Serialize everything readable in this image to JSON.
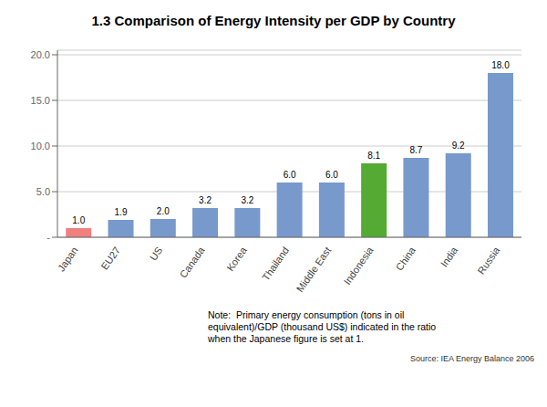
{
  "chart_data": {
    "type": "bar",
    "title": "1.3 Comparison of Energy Intensity per GDP by Country",
    "categories": [
      "Japan",
      "EU27",
      "US",
      "Canada",
      "Korea",
      "Thailand",
      "Middle East",
      "Indonesia",
      "China",
      "India",
      "Russia"
    ],
    "values": [
      1.0,
      1.9,
      2.0,
      3.2,
      3.2,
      6.0,
      6.0,
      8.1,
      8.7,
      9.2,
      18.0
    ],
    "value_labels": [
      "1.0",
      "1.9",
      "2.0",
      "3.2",
      "3.2",
      "6.0",
      "6.0",
      "8.1",
      "8.7",
      "9.2",
      "18.0"
    ],
    "data_labels": true,
    "colors": [
      "#f08080",
      "#7799cc",
      "#7799cc",
      "#7799cc",
      "#7799cc",
      "#7799cc",
      "#7799cc",
      "#55aa33",
      "#7799cc",
      "#7799cc",
      "#7799cc"
    ],
    "ylim": [
      0,
      20.5
    ],
    "yticks": [
      {
        "value": 0,
        "label": "-"
      },
      {
        "value": 5,
        "label": "5.0"
      },
      {
        "value": 10,
        "label": "10.0"
      },
      {
        "value": 15,
        "label": "15.0"
      },
      {
        "value": 20,
        "label": "20.0"
      }
    ],
    "grid": true,
    "annotations": [
      "Note:  Primary energy consumption (tons in oil\nequivalent)/GDP (thousand US$) indicated in the ratio\nwhen the Japanese figure is set at 1.",
      "Source: IEA Energy Balance 2006"
    ]
  }
}
